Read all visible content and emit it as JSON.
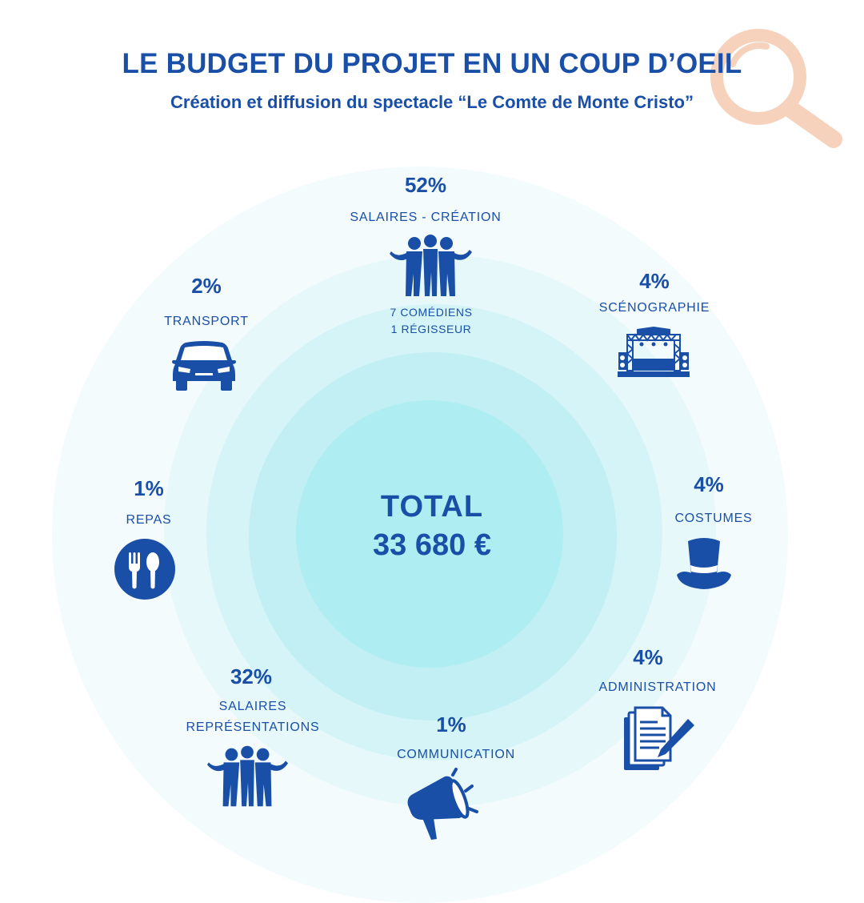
{
  "header": {
    "title": "LE BUDGET DU PROJET EN UN COUP D’OEIL",
    "subtitle": "Création et diffusion du spectacle “Le Comte de Monte Cristo”"
  },
  "total": {
    "label": "TOTAL",
    "value": "33 680 €"
  },
  "items": [
    {
      "pct": "52%",
      "label": "SALAIRES - CRÉATION",
      "note_lines": [
        "7 COMÉDIENS",
        "1 RÉGISSEUR"
      ],
      "icon": "group-people-icon"
    },
    {
      "pct": "4%",
      "label": "SCÉNOGRAPHIE",
      "icon": "stage-icon"
    },
    {
      "pct": "4%",
      "label": "COSTUMES",
      "icon": "top-hat-icon"
    },
    {
      "pct": "4%",
      "label": "ADMINISTRATION",
      "icon": "documents-pen-icon"
    },
    {
      "pct": "1%",
      "label": "COMMUNICATION",
      "icon": "megaphone-icon"
    },
    {
      "pct": "32%",
      "label_lines": [
        "SALAIRES",
        "REPRÉSENTATIONS"
      ],
      "icon": "group-people-icon"
    },
    {
      "pct": "1%",
      "label": "REPAS",
      "icon": "fork-spoon-icon"
    },
    {
      "pct": "2%",
      "label": "TRANSPORT",
      "icon": "car-icon"
    }
  ],
  "colors": {
    "primary": "#1a4fa8",
    "accent": "#f4c4a8",
    "center": "#aeeef2"
  }
}
